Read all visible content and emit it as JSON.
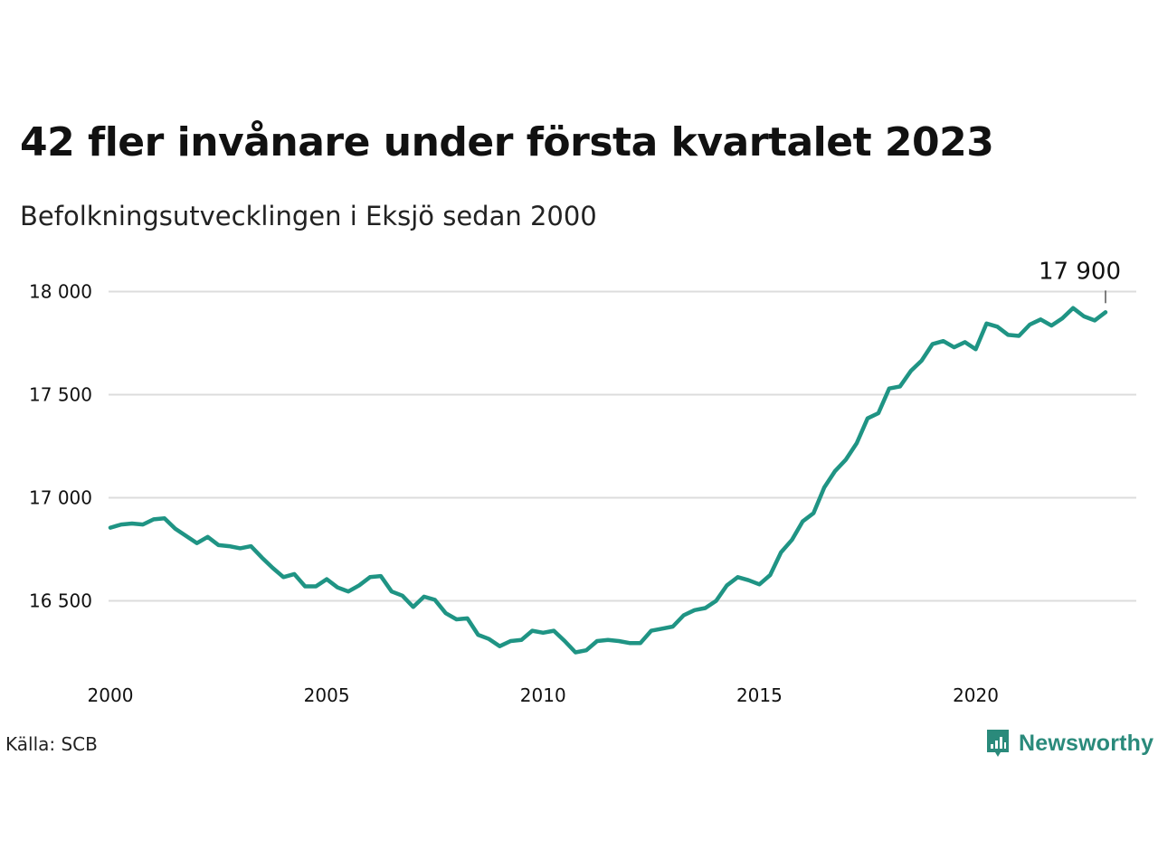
{
  "title": "42 fler invånare under första kvartalet 2023",
  "subtitle": "Befolkningsutvecklingen i Eksjö sedan 2000",
  "source": "Källa: SCB",
  "brand": {
    "name": "Newsworthy",
    "icon": "newsworthy-logo-icon",
    "color": "#2a8a7b"
  },
  "chart_data": {
    "type": "line",
    "title": "42 fler invånare under första kvartalet 2023",
    "subtitle": "Befolkningsutvecklingen i Eksjö sedan 2000",
    "xlabel": "",
    "ylabel": "",
    "xlim": [
      2000,
      2024
    ],
    "ylim": [
      16200,
      18050
    ],
    "x_ticks": [
      2000,
      2005,
      2010,
      2015,
      2020
    ],
    "x_tick_labels": [
      "2000",
      "2005",
      "2010",
      "2015",
      "2020"
    ],
    "y_ticks": [
      16500,
      17000,
      17500,
      18000
    ],
    "y_tick_labels": [
      "16 500",
      "17 000",
      "17 500",
      "18 000"
    ],
    "grid": true,
    "line_color": "#1f9484",
    "series": [
      {
        "x": [
          2000,
          2000.25,
          2000.5,
          2000.75,
          2001,
          2001.25,
          2001.5,
          2001.75,
          2002,
          2002.25,
          2002.5,
          2002.75,
          2003,
          2003.25,
          2003.5,
          2003.75,
          2004,
          2004.25,
          2004.5,
          2004.75,
          2005,
          2005.25,
          2005.5,
          2005.75,
          2006,
          2006.25,
          2006.5,
          2006.75,
          2007,
          2007.25,
          2007.5,
          2007.75,
          2008,
          2008.25,
          2008.5,
          2008.75,
          2009,
          2009.25,
          2009.5,
          2009.75,
          2010,
          2010.25,
          2010.5,
          2010.75,
          2011,
          2011.25,
          2011.5,
          2011.75,
          2012,
          2012.25,
          2012.5,
          2012.75,
          2013,
          2013.25,
          2013.5,
          2013.75,
          2014,
          2014.25,
          2014.5,
          2014.75,
          2015,
          2015.25,
          2015.5,
          2015.75,
          2016,
          2016.25,
          2016.5,
          2016.75,
          2017,
          2017.25,
          2017.5,
          2017.75,
          2018,
          2018.25,
          2018.5,
          2018.75,
          2019,
          2019.25,
          2019.5,
          2019.75,
          2020,
          2020.25,
          2020.5,
          2020.75,
          2021,
          2021.25,
          2021.5,
          2021.75,
          2022,
          2022.25,
          2022.5,
          2022.75,
          2023
        ],
        "values": [
          16855,
          16870,
          16875,
          16870,
          16895,
          16900,
          16850,
          16815,
          16780,
          16810,
          16770,
          16765,
          16755,
          16765,
          16710,
          16660,
          16615,
          16630,
          16570,
          16570,
          16605,
          16565,
          16545,
          16575,
          16615,
          16620,
          16545,
          16525,
          16470,
          16520,
          16505,
          16440,
          16410,
          16415,
          16335,
          16315,
          16280,
          16305,
          16310,
          16355,
          16345,
          16355,
          16305,
          16250,
          16260,
          16305,
          16310,
          16305,
          16295,
          16295,
          16355,
          16365,
          16375,
          16430,
          16455,
          16465,
          16500,
          16575,
          16615,
          16600,
          16580,
          16625,
          16735,
          16795,
          16885,
          16925,
          17050,
          17130,
          17185,
          17265,
          17385,
          17410,
          17530,
          17540,
          17615,
          17665,
          17745,
          17760,
          17730,
          17755,
          17720,
          17845,
          17830,
          17790,
          17785,
          17840,
          17865,
          17835,
          17870,
          17920,
          17880,
          17860,
          17900
        ]
      }
    ],
    "annotations": [
      {
        "x": 2023,
        "y": 17900,
        "text": "17 900"
      }
    ]
  }
}
